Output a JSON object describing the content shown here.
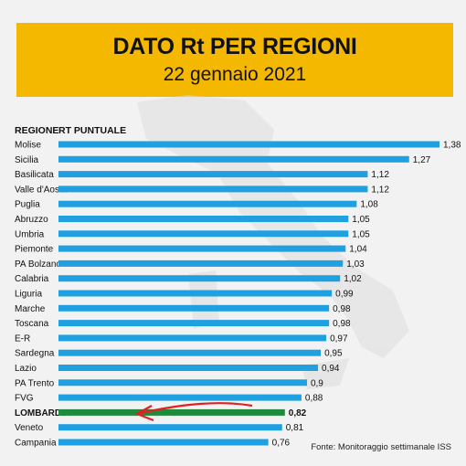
{
  "header": {
    "title": "DATO Rt PER REGIONI",
    "subtitle": "22 gennaio 2021"
  },
  "columns": {
    "region": "REGIONE",
    "value": "RT PUNTUALE"
  },
  "source": "Fonte: Monitoraggio settimanale ISS",
  "colors": {
    "bar": "#1fa0e0",
    "highlight_bar": "#1e8a3c",
    "banner": "#f5b800",
    "arrow": "#e32020"
  },
  "chart_data": {
    "type": "bar",
    "orientation": "horizontal",
    "categories": [
      "Molise",
      "Sicilia",
      "Basilicata",
      "Valle d'Aosta",
      "Puglia",
      "Abruzzo",
      "Umbria",
      "Piemonte",
      "PA Bolzano",
      "Calabria",
      "Liguria",
      "Marche",
      "Toscana",
      "E-R",
      "Sardegna",
      "Lazio",
      "PA Trento",
      "FVG",
      "LOMBARDIA",
      "Veneto",
      "Campania"
    ],
    "values": [
      1.38,
      1.27,
      1.12,
      1.12,
      1.08,
      1.05,
      1.05,
      1.04,
      1.03,
      1.02,
      0.99,
      0.98,
      0.98,
      0.97,
      0.95,
      0.94,
      0.9,
      0.88,
      0.82,
      0.81,
      0.76
    ],
    "value_labels": [
      "1,38",
      "1,27",
      "1,12",
      "1,12",
      "1,08",
      "1,05",
      "1,05",
      "1,04",
      "1,03",
      "1,02",
      "0,99",
      "0,98",
      "0,98",
      "0,97",
      "0,95",
      "0,94",
      "0,9",
      "0,88",
      "0,82",
      "0,81",
      "0,76"
    ],
    "highlight": "LOMBARDIA"
  }
}
